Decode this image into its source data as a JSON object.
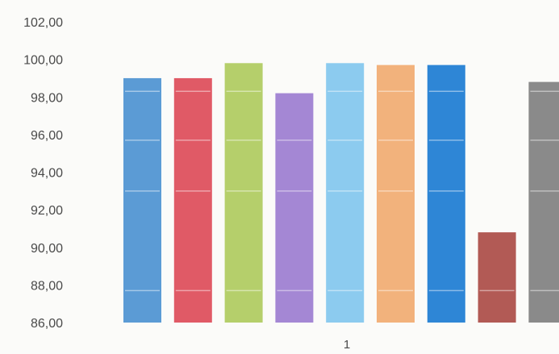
{
  "chart_data": {
    "type": "bar",
    "categories": [
      "1"
    ],
    "series": [
      {
        "values": [
          99.0
        ],
        "color": "#5b9bd5"
      },
      {
        "values": [
          99.0
        ],
        "color": "#e05a66"
      },
      {
        "values": [
          99.8
        ],
        "color": "#b5cf6b"
      },
      {
        "values": [
          98.2
        ],
        "color": "#a487d4"
      },
      {
        "values": [
          99.8
        ],
        "color": "#8ccbef"
      },
      {
        "values": [
          99.7
        ],
        "color": "#f2b27c"
      },
      {
        "values": [
          99.7
        ],
        "color": "#2e86d6"
      },
      {
        "values": [
          90.8
        ],
        "color": "#b25a55"
      },
      {
        "values": [
          98.8
        ],
        "color": "#8a8a8a"
      }
    ],
    "yticks": [
      "86,00",
      "88,00",
      "90,00",
      "92,00",
      "94,00",
      "96,00",
      "98,00",
      "100,00",
      "102,00"
    ],
    "ylim": [
      86,
      102
    ],
    "grid": false,
    "title": "",
    "xlabel": "",
    "ylabel": ""
  }
}
